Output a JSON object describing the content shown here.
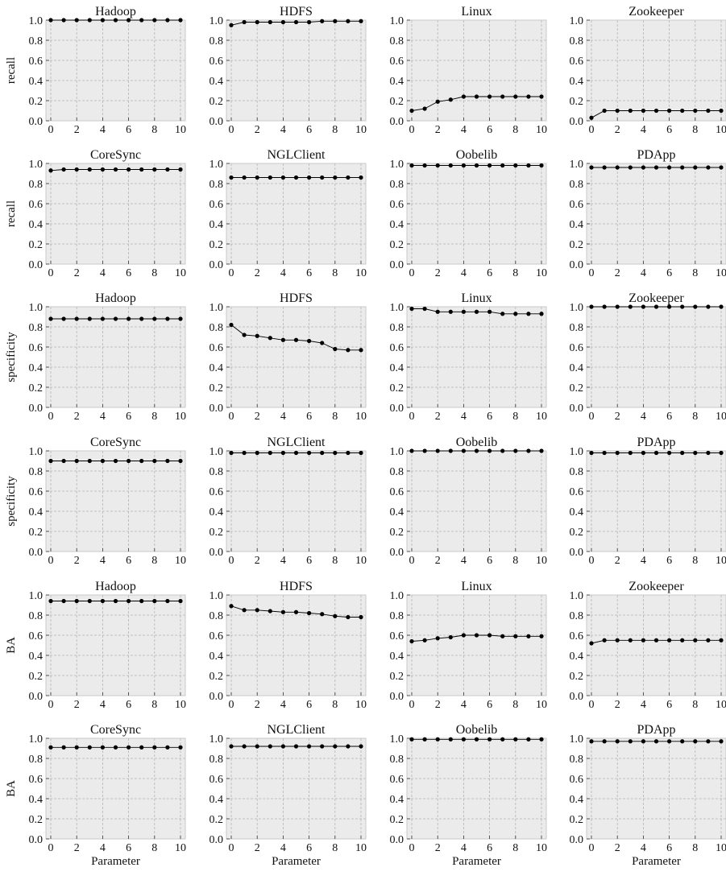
{
  "figure": {
    "x_label": "Parameter",
    "x_ticks": [
      0,
      2,
      4,
      6,
      8,
      10
    ],
    "y_ticks": [
      "0.0",
      "0.2",
      "0.4",
      "0.6",
      "0.8",
      "1.0"
    ],
    "row_labels": [
      "recall",
      "recall",
      "specificity",
      "specificity",
      "BA",
      "BA"
    ],
    "colors": {
      "panel_bg": "#ebebeb",
      "grid": "#b4b4b4",
      "line": "#000000"
    }
  },
  "chart_data": [
    {
      "type": "line",
      "title": "Hadoop",
      "ylabel": "recall",
      "xlim": [
        0,
        10
      ],
      "ylim": [
        0,
        1
      ],
      "x": [
        0,
        1,
        2,
        3,
        4,
        5,
        6,
        7,
        8,
        9,
        10
      ],
      "values": [
        1.0,
        1.0,
        1.0,
        1.0,
        1.0,
        1.0,
        1.0,
        1.0,
        1.0,
        1.0,
        1.0
      ]
    },
    {
      "type": "line",
      "title": "HDFS",
      "ylabel": "",
      "xlim": [
        0,
        10
      ],
      "ylim": [
        0,
        1
      ],
      "x": [
        0,
        1,
        2,
        3,
        4,
        5,
        6,
        7,
        8,
        9,
        10
      ],
      "values": [
        0.95,
        0.98,
        0.98,
        0.98,
        0.98,
        0.98,
        0.98,
        0.99,
        0.99,
        0.99,
        0.99
      ]
    },
    {
      "type": "line",
      "title": "Linux",
      "ylabel": "",
      "xlim": [
        0,
        10
      ],
      "ylim": [
        0,
        1
      ],
      "x": [
        0,
        1,
        2,
        3,
        4,
        5,
        6,
        7,
        8,
        9,
        10
      ],
      "values": [
        0.1,
        0.12,
        0.19,
        0.21,
        0.24,
        0.24,
        0.24,
        0.24,
        0.24,
        0.24,
        0.24
      ]
    },
    {
      "type": "line",
      "title": "Zookeeper",
      "ylabel": "",
      "xlim": [
        0,
        10
      ],
      "ylim": [
        0,
        1
      ],
      "x": [
        0,
        1,
        2,
        3,
        4,
        5,
        6,
        7,
        8,
        9,
        10
      ],
      "values": [
        0.03,
        0.1,
        0.1,
        0.1,
        0.1,
        0.1,
        0.1,
        0.1,
        0.1,
        0.1,
        0.1
      ]
    },
    {
      "type": "line",
      "title": "CoreSync",
      "ylabel": "recall",
      "xlim": [
        0,
        10
      ],
      "ylim": [
        0,
        1
      ],
      "x": [
        0,
        1,
        2,
        3,
        4,
        5,
        6,
        7,
        8,
        9,
        10
      ],
      "values": [
        0.93,
        0.94,
        0.94,
        0.94,
        0.94,
        0.94,
        0.94,
        0.94,
        0.94,
        0.94,
        0.94
      ]
    },
    {
      "type": "line",
      "title": "NGLClient",
      "ylabel": "",
      "xlim": [
        0,
        10
      ],
      "ylim": [
        0,
        1
      ],
      "x": [
        0,
        1,
        2,
        3,
        4,
        5,
        6,
        7,
        8,
        9,
        10
      ],
      "values": [
        0.86,
        0.86,
        0.86,
        0.86,
        0.86,
        0.86,
        0.86,
        0.86,
        0.86,
        0.86,
        0.86
      ]
    },
    {
      "type": "line",
      "title": "Oobelib",
      "ylabel": "",
      "xlim": [
        0,
        10
      ],
      "ylim": [
        0,
        1
      ],
      "x": [
        0,
        1,
        2,
        3,
        4,
        5,
        6,
        7,
        8,
        9,
        10
      ],
      "values": [
        0.98,
        0.98,
        0.98,
        0.98,
        0.98,
        0.98,
        0.98,
        0.98,
        0.98,
        0.98,
        0.98
      ]
    },
    {
      "type": "line",
      "title": "PDApp",
      "ylabel": "",
      "xlim": [
        0,
        10
      ],
      "ylim": [
        0,
        1
      ],
      "x": [
        0,
        1,
        2,
        3,
        4,
        5,
        6,
        7,
        8,
        9,
        10
      ],
      "values": [
        0.96,
        0.96,
        0.96,
        0.96,
        0.96,
        0.96,
        0.96,
        0.96,
        0.96,
        0.96,
        0.96
      ]
    },
    {
      "type": "line",
      "title": "Hadoop",
      "ylabel": "specificity",
      "xlim": [
        0,
        10
      ],
      "ylim": [
        0,
        1
      ],
      "x": [
        0,
        1,
        2,
        3,
        4,
        5,
        6,
        7,
        8,
        9,
        10
      ],
      "values": [
        0.88,
        0.88,
        0.88,
        0.88,
        0.88,
        0.88,
        0.88,
        0.88,
        0.88,
        0.88,
        0.88
      ]
    },
    {
      "type": "line",
      "title": "HDFS",
      "ylabel": "",
      "xlim": [
        0,
        10
      ],
      "ylim": [
        0,
        1
      ],
      "x": [
        0,
        1,
        2,
        3,
        4,
        5,
        6,
        7,
        8,
        9,
        10
      ],
      "values": [
        0.82,
        0.72,
        0.71,
        0.69,
        0.67,
        0.67,
        0.66,
        0.64,
        0.58,
        0.57,
        0.57
      ]
    },
    {
      "type": "line",
      "title": "Linux",
      "ylabel": "",
      "xlim": [
        0,
        10
      ],
      "ylim": [
        0,
        1
      ],
      "x": [
        0,
        1,
        2,
        3,
        4,
        5,
        6,
        7,
        8,
        9,
        10
      ],
      "values": [
        0.98,
        0.98,
        0.95,
        0.95,
        0.95,
        0.95,
        0.95,
        0.93,
        0.93,
        0.93,
        0.93
      ]
    },
    {
      "type": "line",
      "title": "Zookeeper",
      "ylabel": "",
      "xlim": [
        0,
        10
      ],
      "ylim": [
        0,
        1
      ],
      "x": [
        0,
        1,
        2,
        3,
        4,
        5,
        6,
        7,
        8,
        9,
        10
      ],
      "values": [
        1.0,
        1.0,
        1.0,
        1.0,
        1.0,
        1.0,
        1.0,
        1.0,
        1.0,
        1.0,
        1.0
      ]
    },
    {
      "type": "line",
      "title": "CoreSync",
      "ylabel": "specificity",
      "xlim": [
        0,
        10
      ],
      "ylim": [
        0,
        1
      ],
      "x": [
        0,
        1,
        2,
        3,
        4,
        5,
        6,
        7,
        8,
        9,
        10
      ],
      "values": [
        0.9,
        0.9,
        0.9,
        0.9,
        0.9,
        0.9,
        0.9,
        0.9,
        0.9,
        0.9,
        0.9
      ]
    },
    {
      "type": "line",
      "title": "NGLClient",
      "ylabel": "",
      "xlim": [
        0,
        10
      ],
      "ylim": [
        0,
        1
      ],
      "x": [
        0,
        1,
        2,
        3,
        4,
        5,
        6,
        7,
        8,
        9,
        10
      ],
      "values": [
        0.98,
        0.98,
        0.98,
        0.98,
        0.98,
        0.98,
        0.98,
        0.98,
        0.98,
        0.98,
        0.98
      ]
    },
    {
      "type": "line",
      "title": "Oobelib",
      "ylabel": "",
      "xlim": [
        0,
        10
      ],
      "ylim": [
        0,
        1
      ],
      "x": [
        0,
        1,
        2,
        3,
        4,
        5,
        6,
        7,
        8,
        9,
        10
      ],
      "values": [
        1.0,
        1.0,
        1.0,
        1.0,
        1.0,
        1.0,
        1.0,
        1.0,
        1.0,
        1.0,
        1.0
      ]
    },
    {
      "type": "line",
      "title": "PDApp",
      "ylabel": "",
      "xlim": [
        0,
        10
      ],
      "ylim": [
        0,
        1
      ],
      "x": [
        0,
        1,
        2,
        3,
        4,
        5,
        6,
        7,
        8,
        9,
        10
      ],
      "values": [
        0.98,
        0.98,
        0.98,
        0.98,
        0.98,
        0.98,
        0.98,
        0.98,
        0.98,
        0.98,
        0.98
      ]
    },
    {
      "type": "line",
      "title": "Hadoop",
      "ylabel": "BA",
      "xlim": [
        0,
        10
      ],
      "ylim": [
        0,
        1
      ],
      "x": [
        0,
        1,
        2,
        3,
        4,
        5,
        6,
        7,
        8,
        9,
        10
      ],
      "values": [
        0.94,
        0.94,
        0.94,
        0.94,
        0.94,
        0.94,
        0.94,
        0.94,
        0.94,
        0.94,
        0.94
      ]
    },
    {
      "type": "line",
      "title": "HDFS",
      "ylabel": "",
      "xlim": [
        0,
        10
      ],
      "ylim": [
        0,
        1
      ],
      "x": [
        0,
        1,
        2,
        3,
        4,
        5,
        6,
        7,
        8,
        9,
        10
      ],
      "values": [
        0.89,
        0.85,
        0.85,
        0.84,
        0.83,
        0.83,
        0.82,
        0.81,
        0.79,
        0.78,
        0.78
      ]
    },
    {
      "type": "line",
      "title": "Linux",
      "ylabel": "",
      "xlim": [
        0,
        10
      ],
      "ylim": [
        0,
        1
      ],
      "x": [
        0,
        1,
        2,
        3,
        4,
        5,
        6,
        7,
        8,
        9,
        10
      ],
      "values": [
        0.54,
        0.55,
        0.57,
        0.58,
        0.6,
        0.6,
        0.6,
        0.59,
        0.59,
        0.59,
        0.59
      ]
    },
    {
      "type": "line",
      "title": "Zookeeper",
      "ylabel": "",
      "xlim": [
        0,
        10
      ],
      "ylim": [
        0,
        1
      ],
      "x": [
        0,
        1,
        2,
        3,
        4,
        5,
        6,
        7,
        8,
        9,
        10
      ],
      "values": [
        0.52,
        0.55,
        0.55,
        0.55,
        0.55,
        0.55,
        0.55,
        0.55,
        0.55,
        0.55,
        0.55
      ]
    },
    {
      "type": "line",
      "title": "CoreSync",
      "ylabel": "BA",
      "xlim": [
        0,
        10
      ],
      "ylim": [
        0,
        1
      ],
      "x": [
        0,
        1,
        2,
        3,
        4,
        5,
        6,
        7,
        8,
        9,
        10
      ],
      "values": [
        0.91,
        0.91,
        0.91,
        0.91,
        0.91,
        0.91,
        0.91,
        0.91,
        0.91,
        0.91,
        0.91
      ]
    },
    {
      "type": "line",
      "title": "NGLClient",
      "ylabel": "",
      "xlim": [
        0,
        10
      ],
      "ylim": [
        0,
        1
      ],
      "x": [
        0,
        1,
        2,
        3,
        4,
        5,
        6,
        7,
        8,
        9,
        10
      ],
      "values": [
        0.92,
        0.92,
        0.92,
        0.92,
        0.92,
        0.92,
        0.92,
        0.92,
        0.92,
        0.92,
        0.92
      ]
    },
    {
      "type": "line",
      "title": "Oobelib",
      "ylabel": "",
      "xlim": [
        0,
        10
      ],
      "ylim": [
        0,
        1
      ],
      "x": [
        0,
        1,
        2,
        3,
        4,
        5,
        6,
        7,
        8,
        9,
        10
      ],
      "values": [
        0.99,
        0.99,
        0.99,
        0.99,
        0.99,
        0.99,
        0.99,
        0.99,
        0.99,
        0.99,
        0.99
      ]
    },
    {
      "type": "line",
      "title": "PDApp",
      "ylabel": "",
      "xlim": [
        0,
        10
      ],
      "ylim": [
        0,
        1
      ],
      "x": [
        0,
        1,
        2,
        3,
        4,
        5,
        6,
        7,
        8,
        9,
        10
      ],
      "values": [
        0.97,
        0.97,
        0.97,
        0.97,
        0.97,
        0.97,
        0.97,
        0.97,
        0.97,
        0.97,
        0.97
      ]
    }
  ]
}
